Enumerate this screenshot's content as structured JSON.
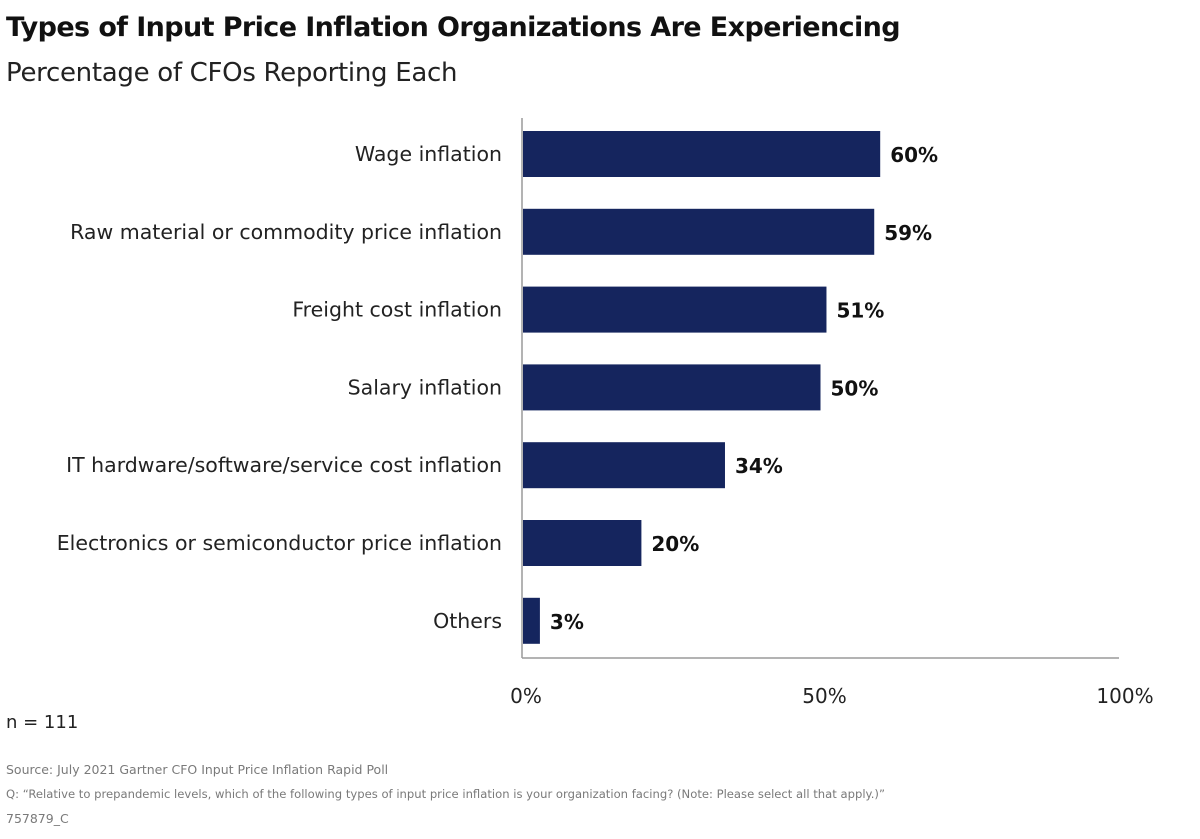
{
  "header": {
    "title": "Types of Input Price Inflation Organizations Are Experiencing",
    "subtitle": "Percentage of CFOs Reporting Each"
  },
  "footer": {
    "n_note": "n = 111",
    "source": "Source: July 2021 Gartner CFO Input Price Inflation Rapid Poll",
    "question": "Q: “Relative to prepandemic levels, which of the following types of input price inflation is your organization facing? (Note: Please select all that apply.)”",
    "code": "757879_C"
  },
  "chart_data": {
    "type": "bar",
    "orientation": "horizontal",
    "title": "Types of Input Price Inflation Organizations Are Experiencing",
    "subtitle": "Percentage of CFOs Reporting Each",
    "categories": [
      "Wage inflation",
      "Raw material or commodity price inflation",
      "Freight cost inflation",
      "Salary inflation",
      "IT hardware/software/service cost inflation",
      "Electronics or semiconductor price inflation",
      "Others"
    ],
    "values": [
      60,
      59,
      51,
      50,
      34,
      20,
      3
    ],
    "value_labels": [
      "60%",
      "59%",
      "51%",
      "50%",
      "34%",
      "20%",
      "3%"
    ],
    "xlim": [
      0,
      100
    ],
    "xticks": [
      0,
      50,
      100
    ],
    "xtick_labels": [
      "0%",
      "50%",
      "100%"
    ],
    "grid": false,
    "bar_color": "#15255e",
    "axis_color": "#9a9a9a"
  }
}
